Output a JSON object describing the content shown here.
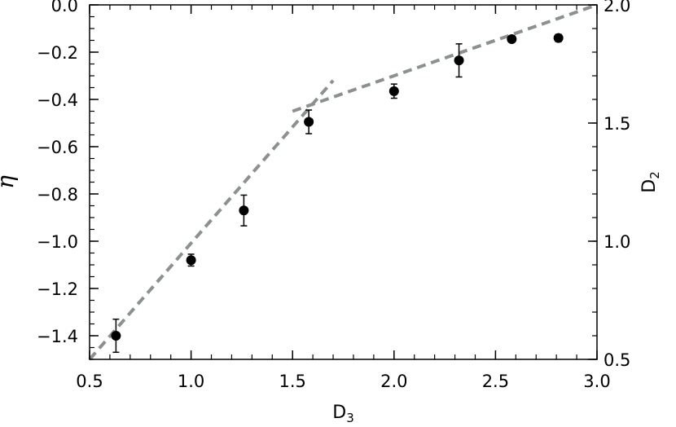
{
  "chart_data": {
    "type": "scatter",
    "xlabel": "D",
    "xlabel_sub": "3",
    "ylabel": "η",
    "y2label": "D",
    "y2label_sub": "2",
    "xlim": [
      0.5,
      3.0
    ],
    "ylim": [
      -1.5,
      0.0
    ],
    "y2lim": [
      0.5,
      2.0
    ],
    "x_ticks": [
      "0.5",
      "1.0",
      "1.5",
      "2.0",
      "2.5",
      "3.0"
    ],
    "y_ticks": [
      "0.0",
      "−0.2",
      "−0.4",
      "−0.6",
      "−0.8",
      "−1.0",
      "−1.2",
      "−1.4"
    ],
    "y2_ticks": [
      "2.0",
      "1.5",
      "1.0",
      "0.5"
    ],
    "grid": false,
    "legend": "none",
    "series": [
      {
        "marker": "filled-circle",
        "color": "#000000",
        "x": [
          0.63,
          1.0,
          1.26,
          1.58,
          2.0,
          2.32,
          2.58,
          2.81
        ],
        "y": [
          -1.4,
          -1.08,
          -0.87,
          -0.495,
          -0.365,
          -0.235,
          -0.145,
          -0.14
        ],
        "yerr": [
          0.07,
          0.025,
          0.065,
          0.05,
          0.03,
          0.07,
          0.01,
          0.015
        ]
      }
    ],
    "reference_lines": [
      {
        "style": "dashed",
        "color": "#8a918e",
        "axis": "y2",
        "x": [
          0.5,
          1.7
        ],
        "y": [
          0.5,
          1.68
        ]
      },
      {
        "style": "dashed",
        "color": "#8a918e",
        "axis": "y2",
        "x": [
          1.5,
          3.0
        ],
        "y": [
          1.55,
          2.0
        ]
      }
    ]
  }
}
